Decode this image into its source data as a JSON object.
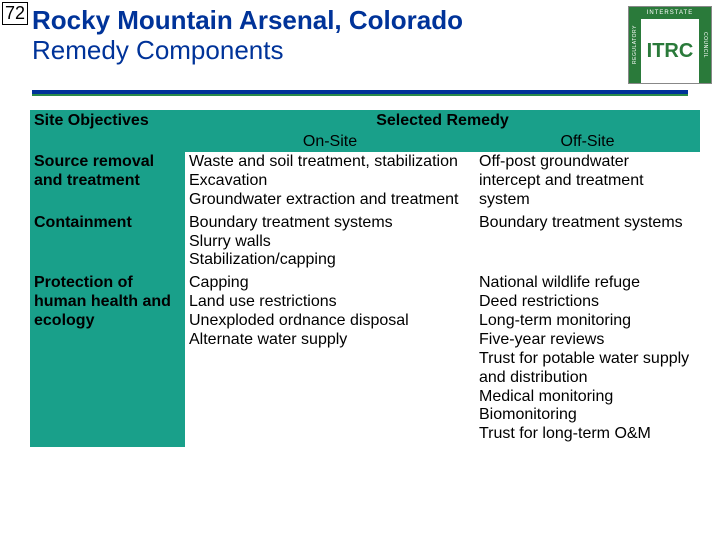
{
  "slide_number": "72",
  "title": "Rocky Mountain Arsenal, Colorado",
  "subtitle": "Remedy Components",
  "logo": {
    "top": "INTERSTATE",
    "center": "ITRC",
    "left": "REGULATORY",
    "right": "COUNCIL"
  },
  "colors": {
    "title_color": "#003399",
    "rule_main": "#003399",
    "rule_accent": "#2a8a4a",
    "table_header_bg": "#19a08a",
    "logo_green": "#2a7a3a"
  },
  "table": {
    "header_left": "Site Objectives",
    "header_span": "Selected Remedy",
    "sub_onsite": "On-Site",
    "sub_offsite": "Off-Site",
    "rows": [
      {
        "head": "Source removal and treatment",
        "onsite": "Waste and soil treatment, stabilization\nExcavation\nGroundwater extraction and treatment",
        "offsite": "Off-post groundwater intercept and treatment system"
      },
      {
        "head": "Containment",
        "onsite": "Boundary treatment systems\nSlurry walls\nStabilization/capping",
        "offsite": "Boundary treatment systems"
      },
      {
        "head": "Protection of human health and ecology",
        "onsite": "Capping\nLand use restrictions\nUnexploded ordnance disposal\nAlternate water supply",
        "offsite": "National wildlife refuge\nDeed restrictions\nLong-term monitoring\nFive-year reviews\nTrust for potable water supply and distribution\nMedical monitoring\nBiomonitoring\nTrust for long-term O&M"
      }
    ]
  }
}
